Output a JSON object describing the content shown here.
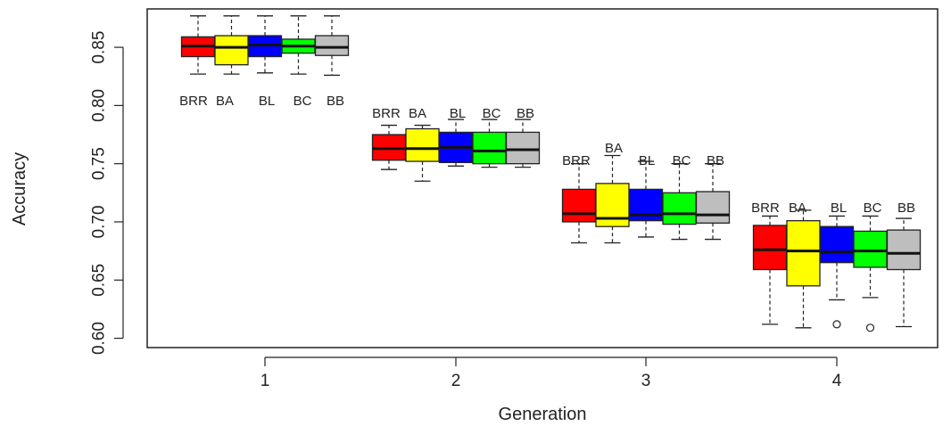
{
  "chart_data": {
    "type": "boxplot",
    "xlabel": "Generation",
    "ylabel": "Accuracy",
    "categories": [
      "1",
      "2",
      "3",
      "4"
    ],
    "ylim": [
      0.592,
      0.883
    ],
    "yticks": [
      "0.60",
      "0.65",
      "0.70",
      "0.75",
      "0.80",
      "0.85"
    ],
    "grid": false,
    "series": [
      {
        "name": "BRR",
        "color": "#ff0000",
        "labels": [
          "BRR",
          "BRR",
          "BRR",
          "BRR"
        ],
        "boxes": [
          {
            "whislo": 0.827,
            "q1": 0.842,
            "med": 0.851,
            "q3": 0.859,
            "whishi": 0.877,
            "fliers": []
          },
          {
            "whislo": 0.745,
            "q1": 0.753,
            "med": 0.763,
            "q3": 0.775,
            "whishi": 0.783,
            "fliers": []
          },
          {
            "whislo": 0.682,
            "q1": 0.7,
            "med": 0.707,
            "q3": 0.728,
            "whishi": 0.75,
            "fliers": []
          },
          {
            "whislo": 0.612,
            "q1": 0.659,
            "med": 0.676,
            "q3": 0.697,
            "whishi": 0.705,
            "fliers": []
          }
        ]
      },
      {
        "name": "BA",
        "color": "#ffff00",
        "labels": [
          "BA",
          "BA",
          "BA",
          "BA"
        ],
        "boxes": [
          {
            "whislo": 0.827,
            "q1": 0.835,
            "med": 0.85,
            "q3": 0.86,
            "whishi": 0.877,
            "fliers": []
          },
          {
            "whislo": 0.735,
            "q1": 0.752,
            "med": 0.763,
            "q3": 0.78,
            "whishi": 0.783,
            "fliers": []
          },
          {
            "whislo": 0.682,
            "q1": 0.696,
            "med": 0.703,
            "q3": 0.733,
            "whishi": 0.757,
            "fliers": []
          },
          {
            "whislo": 0.609,
            "q1": 0.645,
            "med": 0.675,
            "q3": 0.701,
            "whishi": 0.71,
            "fliers": []
          }
        ]
      },
      {
        "name": "BL",
        "color": "#0000ff",
        "labels": [
          "BL",
          "BL",
          "BL",
          "BL"
        ],
        "boxes": [
          {
            "whislo": 0.828,
            "q1": 0.842,
            "med": 0.852,
            "q3": 0.86,
            "whishi": 0.877,
            "fliers": []
          },
          {
            "whislo": 0.748,
            "q1": 0.751,
            "med": 0.764,
            "q3": 0.777,
            "whishi": 0.788,
            "fliers": []
          },
          {
            "whislo": 0.687,
            "q1": 0.701,
            "med": 0.706,
            "q3": 0.728,
            "whishi": 0.752,
            "fliers": []
          },
          {
            "whislo": 0.633,
            "q1": 0.665,
            "med": 0.674,
            "q3": 0.696,
            "whishi": 0.705,
            "fliers": [
              0.612
            ]
          }
        ]
      },
      {
        "name": "BC",
        "color": "#00ff00",
        "labels": [
          "BC",
          "BC",
          "BC",
          "BC"
        ],
        "boxes": [
          {
            "whislo": 0.827,
            "q1": 0.845,
            "med": 0.851,
            "q3": 0.857,
            "whishi": 0.877,
            "fliers": []
          },
          {
            "whislo": 0.747,
            "q1": 0.75,
            "med": 0.761,
            "q3": 0.777,
            "whishi": 0.788,
            "fliers": []
          },
          {
            "whislo": 0.685,
            "q1": 0.698,
            "med": 0.707,
            "q3": 0.725,
            "whishi": 0.75,
            "fliers": []
          },
          {
            "whislo": 0.635,
            "q1": 0.661,
            "med": 0.675,
            "q3": 0.692,
            "whishi": 0.705,
            "fliers": [
              0.609
            ]
          }
        ]
      },
      {
        "name": "BB",
        "color": "#bebebe",
        "labels": [
          "BB",
          "BB",
          "BB",
          "BB"
        ],
        "boxes": [
          {
            "whislo": 0.826,
            "q1": 0.843,
            "med": 0.85,
            "q3": 0.86,
            "whishi": 0.877,
            "fliers": []
          },
          {
            "whislo": 0.747,
            "q1": 0.75,
            "med": 0.762,
            "q3": 0.777,
            "whishi": 0.788,
            "fliers": []
          },
          {
            "whislo": 0.685,
            "q1": 0.699,
            "med": 0.706,
            "q3": 0.726,
            "whishi": 0.75,
            "fliers": []
          },
          {
            "whislo": 0.61,
            "q1": 0.659,
            "med": 0.673,
            "q3": 0.693,
            "whishi": 0.703,
            "fliers": []
          }
        ]
      }
    ],
    "group_labels": [
      "BRRBA BL  BC  BB",
      "BRRBA BL  BC  BB",
      null,
      "BRRBA BL  BC  BB"
    ]
  }
}
